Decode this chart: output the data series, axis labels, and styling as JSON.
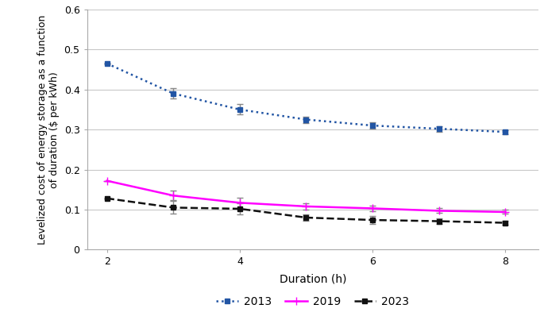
{
  "x": [
    2,
    3,
    4,
    5,
    6,
    7,
    8
  ],
  "series_2013": {
    "y": [
      0.465,
      0.39,
      0.35,
      0.325,
      0.31,
      0.302,
      0.294
    ],
    "yerr_lo": [
      0.0,
      0.013,
      0.013,
      0.008,
      0.008,
      0.007,
      0.005
    ],
    "yerr_hi": [
      0.0,
      0.013,
      0.013,
      0.008,
      0.008,
      0.007,
      0.005
    ],
    "color": "#2255a4",
    "linestyle": "dotted",
    "marker": "s",
    "markersize": 4,
    "label": "2013"
  },
  "series_2019": {
    "y": [
      0.172,
      0.135,
      0.117,
      0.108,
      0.103,
      0.097,
      0.094
    ],
    "yerr_lo": [
      0.0,
      0.012,
      0.013,
      0.008,
      0.007,
      0.006,
      0.005
    ],
    "yerr_hi": [
      0.0,
      0.012,
      0.013,
      0.008,
      0.007,
      0.006,
      0.005
    ],
    "color": "#ff00ff",
    "linestyle": "solid",
    "marker": "+",
    "markersize": 7,
    "label": "2019"
  },
  "series_2023": {
    "y": [
      0.128,
      0.105,
      0.102,
      0.08,
      0.074,
      0.071,
      0.067
    ],
    "yerr_lo": [
      0.0,
      0.016,
      0.014,
      0.008,
      0.01,
      0.007,
      0.005
    ],
    "yerr_hi": [
      0.0,
      0.016,
      0.014,
      0.008,
      0.01,
      0.007,
      0.005
    ],
    "color": "#111111",
    "linestyle": "dashed",
    "marker": "s",
    "markersize": 4,
    "label": "2023"
  },
  "xlabel": "Duration (h)",
  "ylabel": "Levelized cost of energy storage as a function\nof duration ($ per kWh)",
  "xlim": [
    1.7,
    8.5
  ],
  "ylim": [
    0,
    0.6
  ],
  "yticks": [
    0,
    0.1,
    0.2,
    0.3,
    0.4,
    0.5,
    0.6
  ],
  "xticks": [
    2,
    4,
    6,
    8
  ],
  "grid_color": "#c8c8c8",
  "background_color": "#ffffff",
  "capsize": 3,
  "linewidth": 1.8,
  "elinewidth": 1.0,
  "ecolor": "#888888"
}
